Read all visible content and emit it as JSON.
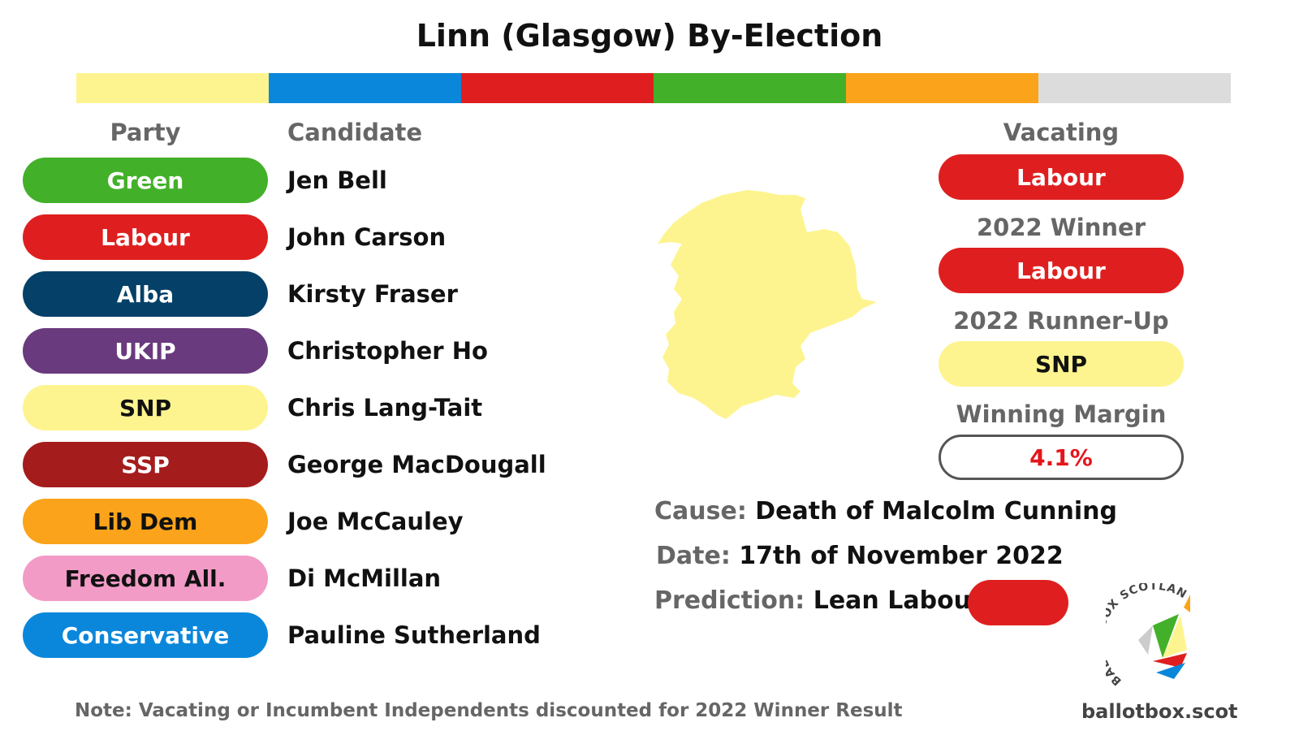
{
  "title": "Linn (Glasgow) By-Election",
  "colorbar": [
    "#fdf48f",
    "#0a87db",
    "#df1f1f",
    "#43b02a",
    "#fba31a",
    "#dcdcdc"
  ],
  "headers": {
    "party": "Party",
    "candidate": "Candidate",
    "vacating": "Vacating"
  },
  "candidates": [
    {
      "party": "Green",
      "name": "Jen Bell",
      "color": "#43b02a",
      "text_color": "#ffffff"
    },
    {
      "party": "Labour",
      "name": "John Carson",
      "color": "#df1f1f",
      "text_color": "#ffffff"
    },
    {
      "party": "Alba",
      "name": "Kirsty Fraser",
      "color": "#054068",
      "text_color": "#ffffff"
    },
    {
      "party": "UKIP",
      "name": "Christopher Ho",
      "color": "#6a3a7e",
      "text_color": "#ffffff"
    },
    {
      "party": "SNP",
      "name": "Chris Lang-Tait",
      "color": "#fdf48f",
      "text_color": "#111111"
    },
    {
      "party": "SSP",
      "name": "George MacDougall",
      "color": "#a51c1c",
      "text_color": "#ffffff"
    },
    {
      "party": "Lib Dem",
      "name": "Joe McCauley",
      "color": "#fba31a",
      "text_color": "#111111"
    },
    {
      "party": "Freedom All.",
      "name": "Di McMillan",
      "color": "#f29bc7",
      "text_color": "#111111"
    },
    {
      "party": "Conservative",
      "name": "Pauline Sutherland",
      "color": "#0a87db",
      "text_color": "#ffffff"
    }
  ],
  "vacating": {
    "party": "Labour",
    "color": "#df1f1f",
    "text_color": "#ffffff"
  },
  "winner_2022": {
    "label": "2022 Winner",
    "party": "Labour",
    "color": "#df1f1f",
    "text_color": "#ffffff"
  },
  "runner_up_2022": {
    "label": "2022 Runner-Up",
    "party": "SNP",
    "color": "#fdf48f",
    "text_color": "#111111"
  },
  "winning_margin": {
    "label": "Winning Margin",
    "value": "4.1%",
    "color": "#e5151b"
  },
  "cause": {
    "label": "Cause:",
    "value": "Death of Malcolm Cunning"
  },
  "date": {
    "label": "Date:",
    "value": "17th of November 2022"
  },
  "prediction": {
    "label": "Prediction:",
    "value": "Lean Labour",
    "color": "#df1f1f"
  },
  "map_color": "#fdf48f",
  "logo_text": "BALLOT BOX SCOTLAND",
  "footnote": "Note: Vacating  or Incumbent Independents discounted for 2022 Winner Result",
  "website": "ballotbox.scot"
}
